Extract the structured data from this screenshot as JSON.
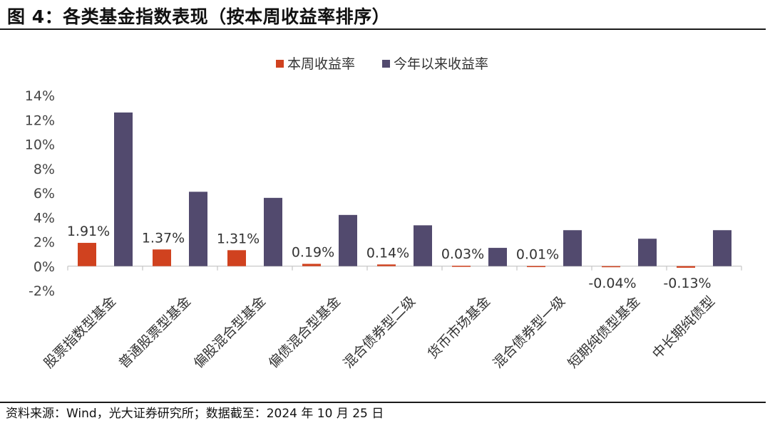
{
  "figure": {
    "title": "图 4：各类基金指数表现（按本周收益率排序）",
    "source": "资料来源：Wind，光大证券研究所；数据截至：2024 年 10 月 25 日"
  },
  "chart_data": {
    "type": "bar",
    "categories": [
      "股票指数型基金",
      "普通股票型基金",
      "偏股混合型基金",
      "偏债混合型基金",
      "混合债券型二级",
      "货币市场基金",
      "混合债券型一级",
      "短期纯债型基金",
      "中长期纯债型"
    ],
    "series": [
      {
        "name": "本周收益率",
        "color": "#d0421f",
        "values": [
          1.91,
          1.37,
          1.31,
          0.19,
          0.14,
          0.03,
          0.01,
          -0.04,
          -0.13
        ],
        "labels": [
          "1.91%",
          "1.37%",
          "1.31%",
          "0.19%",
          "0.14%",
          "0.03%",
          "0.01%",
          "-0.04%",
          "-0.13%"
        ]
      },
      {
        "name": "今年以来收益率",
        "color": "#524a6e",
        "values": [
          12.6,
          6.1,
          5.6,
          4.2,
          3.35,
          1.5,
          2.95,
          2.25,
          2.95
        ]
      }
    ],
    "yticks": [
      "14%",
      "12%",
      "10%",
      "8%",
      "6%",
      "4%",
      "2%",
      "0%",
      "-2%"
    ],
    "ylim": [
      -2,
      14
    ],
    "legend": "top-center",
    "grid": false
  }
}
